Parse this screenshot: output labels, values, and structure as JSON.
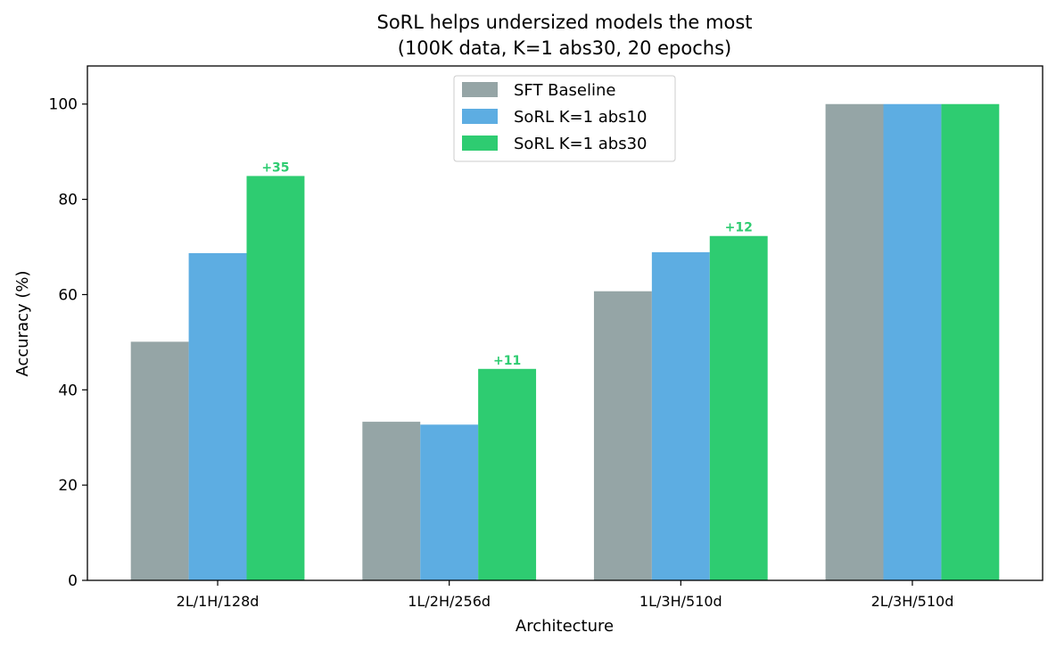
{
  "chart_data": {
    "type": "bar",
    "title": "SoRL helps undersized models the most",
    "subtitle": "(100K data, K=1 abs30, 20 epochs)",
    "xlabel": "Architecture",
    "ylabel": "Accuracy (%)",
    "categories": [
      "2L/1H/128d",
      "1L/2H/256d",
      "1L/3H/510d",
      "2L/3H/510d"
    ],
    "ylim": [
      0,
      108
    ],
    "yticks": [
      0,
      20,
      40,
      60,
      80,
      100
    ],
    "grid": false,
    "legend_position": "top-center",
    "series": [
      {
        "name": "SFT Baseline",
        "color": "#95a5a6",
        "values": [
          50.1,
          33.3,
          60.7,
          100
        ]
      },
      {
        "name": "SoRL K=1 abs10",
        "color": "#5dade2",
        "values": [
          68.7,
          32.7,
          68.9,
          100
        ]
      },
      {
        "name": "SoRL K=1 abs30",
        "color": "#2ecc71",
        "values": [
          84.9,
          44.4,
          72.3,
          100
        ]
      }
    ],
    "annotations": [
      {
        "category": "2L/1H/128d",
        "series": "SoRL K=1 abs30",
        "text": "+35",
        "color": "#2ecc71"
      },
      {
        "category": "1L/2H/256d",
        "series": "SoRL K=1 abs30",
        "text": "+11",
        "color": "#2ecc71"
      },
      {
        "category": "1L/3H/510d",
        "series": "SoRL K=1 abs30",
        "text": "+12",
        "color": "#2ecc71"
      }
    ]
  }
}
